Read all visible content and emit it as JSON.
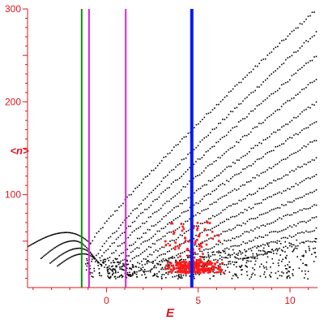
{
  "chart_data": {
    "type": "scatter",
    "title": "",
    "xlabel": "E",
    "ylabel": "<n>",
    "xlim": [
      -4.3,
      11.5
    ],
    "ylim": [
      0,
      300
    ],
    "xticks": [
      0,
      5,
      10
    ],
    "yticks": [
      100,
      200,
      300
    ],
    "grid": false,
    "legend": "none",
    "colors": {
      "axis": "#e0141e",
      "points": "#000000",
      "highlight": "#ff1a1a",
      "green_line": "#138a13",
      "magenta_line": "#e020e0",
      "blue_line": "#0a1af0"
    },
    "vertical_lines": [
      {
        "x": -1.35,
        "color": "green"
      },
      {
        "x": -0.95,
        "color": "magenta"
      },
      {
        "x": 1.05,
        "color": "magenta"
      },
      {
        "x": 4.65,
        "color": "blue"
      }
    ],
    "families": [
      {
        "start": [
          -0.9,
          48
        ],
        "end": [
          11.4,
          300
        ]
      },
      {
        "start": [
          -0.7,
          32
        ],
        "end": [
          11.4,
          275
        ]
      },
      {
        "start": [
          -0.5,
          28
        ],
        "end": [
          11.4,
          250
        ]
      },
      {
        "start": [
          -0.3,
          24
        ],
        "end": [
          11.4,
          225
        ]
      },
      {
        "start": [
          0.0,
          21
        ],
        "end": [
          11.4,
          200
        ]
      },
      {
        "start": [
          0.3,
          19
        ],
        "end": [
          11.4,
          180
        ]
      },
      {
        "start": [
          0.6,
          17
        ],
        "end": [
          11.4,
          160
        ]
      },
      {
        "start": [
          1.0,
          16
        ],
        "end": [
          11.4,
          140
        ]
      },
      {
        "start": [
          1.4,
          15
        ],
        "end": [
          11.4,
          122
        ]
      },
      {
        "start": [
          1.9,
          14
        ],
        "end": [
          11.4,
          105
        ]
      },
      {
        "start": [
          2.5,
          14
        ],
        "end": [
          11.4,
          90
        ]
      },
      {
        "start": [
          3.1,
          14
        ],
        "end": [
          11.4,
          76
        ]
      },
      {
        "start": [
          3.8,
          14
        ],
        "end": [
          11.4,
          64
        ]
      },
      {
        "start": [
          4.5,
          14
        ],
        "end": [
          11.4,
          52
        ]
      }
    ],
    "left_branches": [
      {
        "x_start": -4.3,
        "y_start": 45,
        "peak_x": -2.2,
        "peak_y": 60,
        "x_end": -0.9,
        "y_end": 48
      },
      {
        "x_start": -3.6,
        "y_start": 32,
        "peak_x": -1.8,
        "peak_y": 51,
        "x_end": -0.7,
        "y_end": 32
      },
      {
        "x_start": -3.1,
        "y_start": 27,
        "peak_x": -1.5,
        "peak_y": 43,
        "x_end": -0.5,
        "y_end": 28
      },
      {
        "x_start": -2.7,
        "y_start": 24,
        "peak_x": -1.3,
        "peak_y": 37,
        "x_end": -0.3,
        "y_end": 24
      }
    ],
    "highlight_cluster": {
      "x_center": 4.7,
      "x_spread": 3.2,
      "y_center": 22,
      "y_min": 15,
      "y_max": 72
    },
    "scatter_band": {
      "x_min": 0.0,
      "x_max": 11.4,
      "y_min": 10,
      "y_max": 55
    }
  }
}
